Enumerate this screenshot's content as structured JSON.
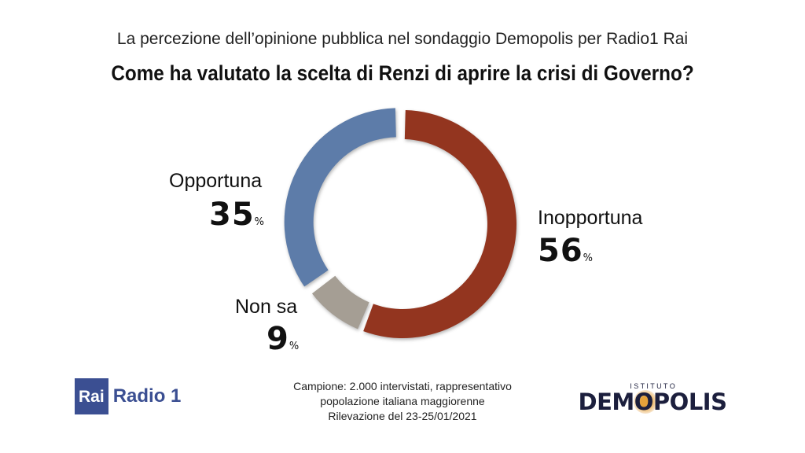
{
  "subtitle": "La percezione dell’opinione pubblica nel sondaggio Demopolis per Radio1 Rai",
  "title": "Come ha valutato la scelta di Renzi di aprire la crisi di Governo?",
  "chart_data": {
    "type": "pie",
    "donut": true,
    "categories": [
      "Inopportuna",
      "Non sa",
      "Opportuna"
    ],
    "values": [
      56,
      9,
      35
    ],
    "value_labels": [
      "56",
      "9",
      "35"
    ],
    "unit": "%",
    "colors": [
      "#93351f",
      "#a59e94",
      "#5d7ca9"
    ]
  },
  "note": {
    "line1": "Campione: 2.000 intervistati, rappresentativo",
    "line2": "popolazione italiana maggiorenne",
    "line3": "Rilevazione del 23-25/01/2021"
  },
  "logos": {
    "rai": "Rai",
    "radio": "Radio 1",
    "istituto": "I S T I T U T O",
    "demopolis": "DEMOPOLIS"
  }
}
